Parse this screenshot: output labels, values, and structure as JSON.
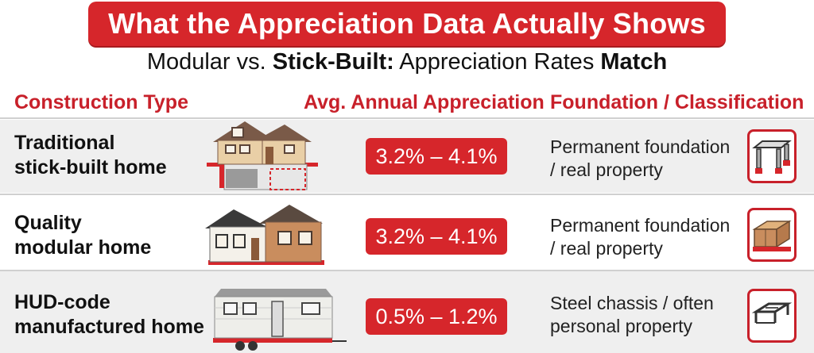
{
  "title": "What the Appreciation Data Actually Shows",
  "subtitle": {
    "part1": "Modular vs. ",
    "part2": "Stick-Built:",
    "part3": " Appreciation Rates ",
    "part4": "Match"
  },
  "columns": {
    "type": "Construction Type",
    "appreciation": "Avg. Annual Appreciation",
    "foundation": "Foundation / Classification"
  },
  "rows": [
    {
      "line1": "Traditional",
      "line2": "stick-built home",
      "rate": "3.2% – 4.1%",
      "found1": "Permanent foundation",
      "found2": "/ real property",
      "image": "stick-built-house-icon",
      "icon": "foundation-columns-icon"
    },
    {
      "line1": "Quality",
      "line2": "modular home",
      "rate": "3.2% – 4.1%",
      "found1": "Permanent foundation",
      "found2": "/ real property",
      "image": "modular-house-icon",
      "icon": "modular-box-icon"
    },
    {
      "line1": "HUD-code",
      "line2": "manufactured home",
      "rate": "0.5% – 1.2%",
      "found1": "Steel chassis / often",
      "found2": "personal property",
      "image": "manufactured-home-icon",
      "icon": "steel-chassis-icon"
    }
  ],
  "colors": {
    "accent": "#d6262b",
    "header_text": "#c8202a",
    "row_shade": "#efefef"
  }
}
